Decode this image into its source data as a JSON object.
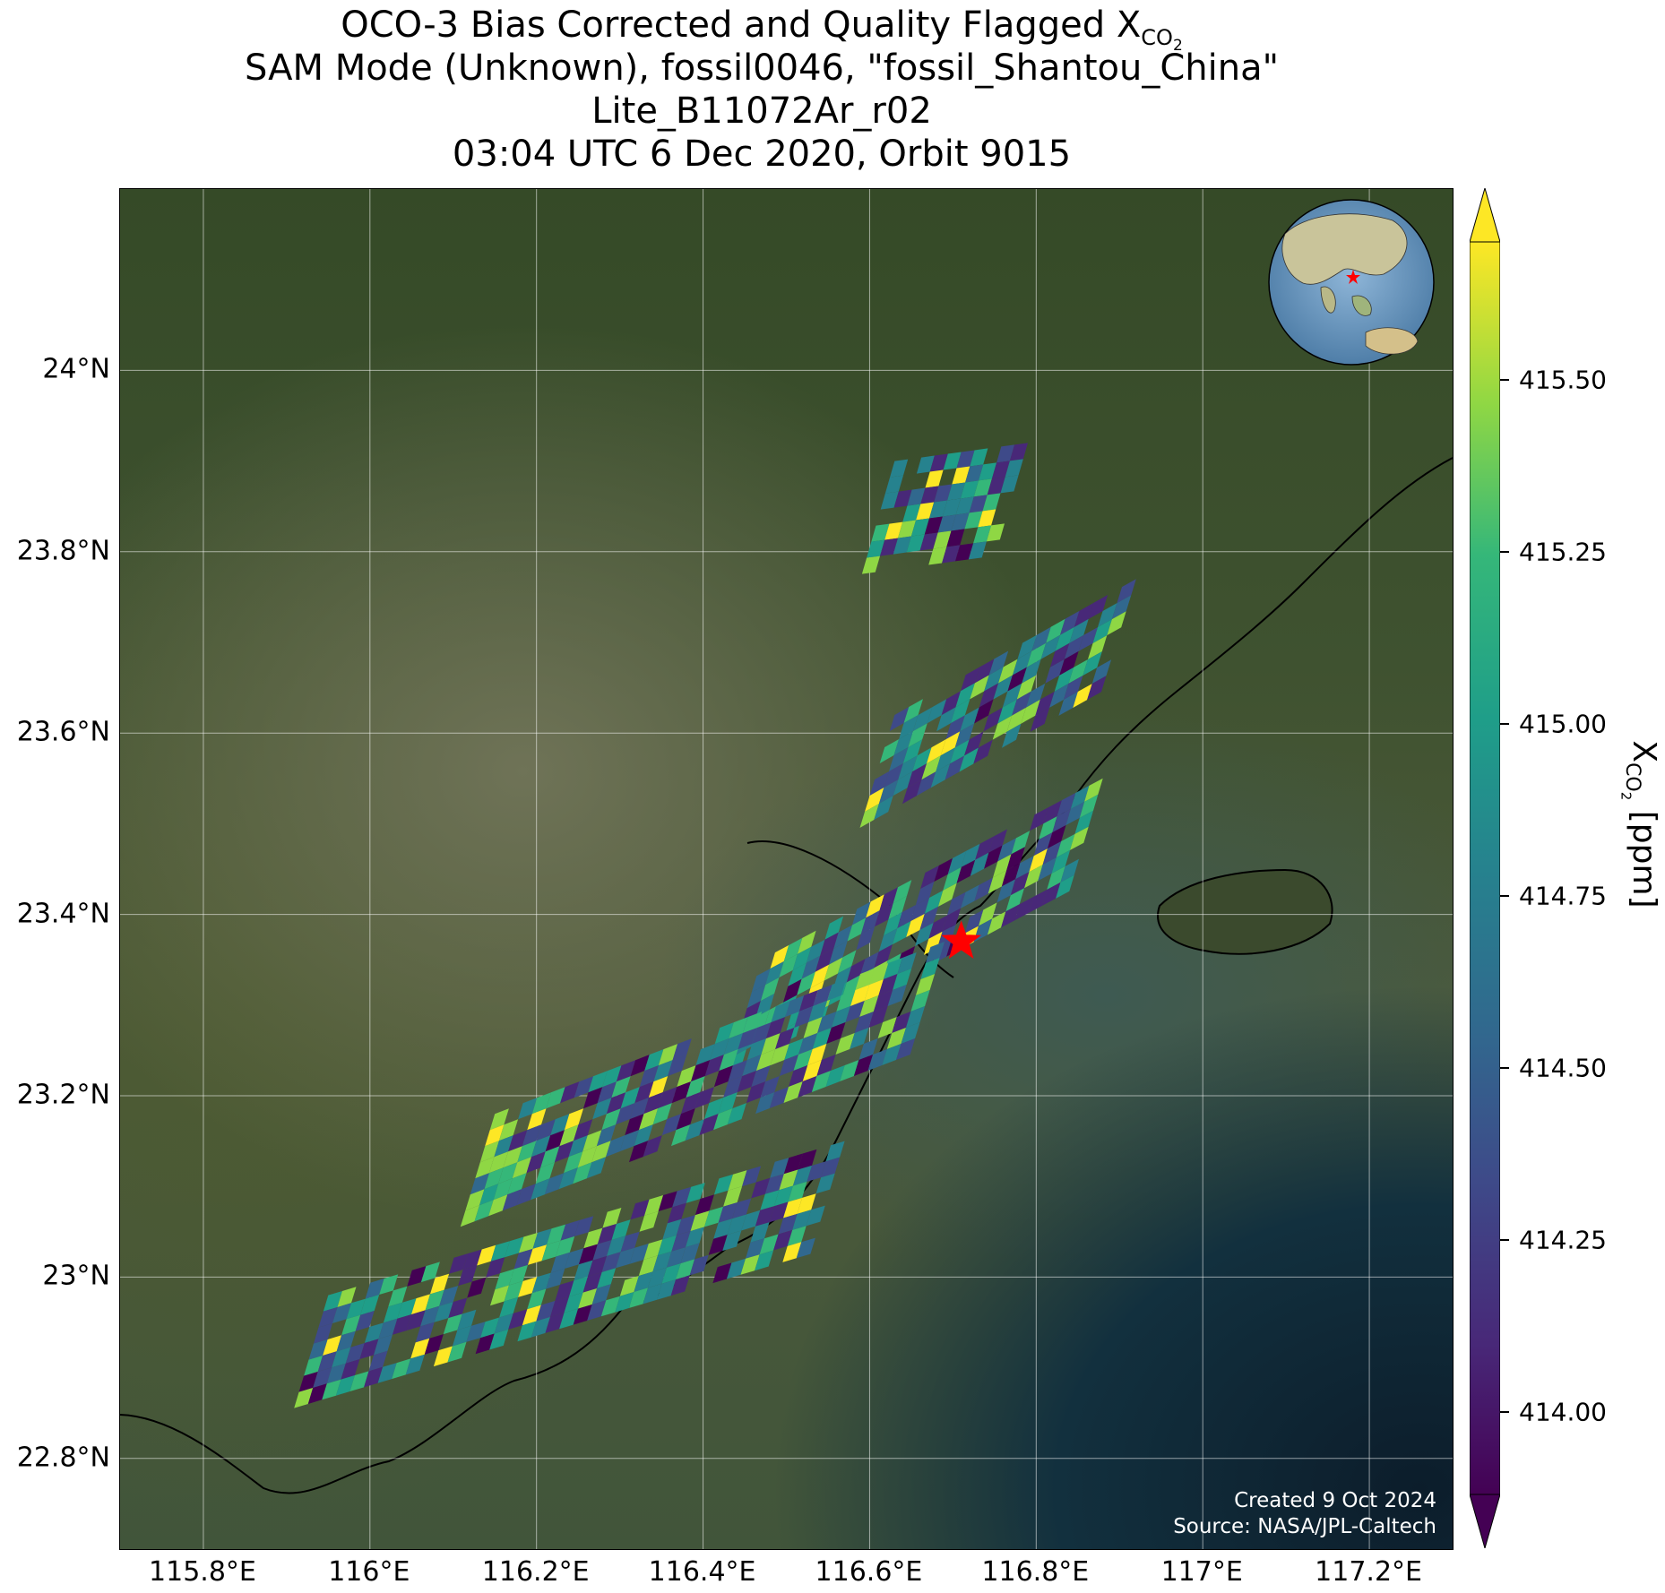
{
  "title": {
    "line1_prefix": "OCO-3 Bias Corrected and Quality Flagged X",
    "line1_sub": "CO",
    "line1_sub2": "2",
    "line2": "SAM Mode (Unknown), fossil0046, \"fossil_Shantou_China\"",
    "line3": "Lite_B11072Ar_r02",
    "line4": "03:04 UTC 6 Dec 2020, Orbit 9015"
  },
  "map": {
    "lat_ticks": [
      "24°N",
      "23.8°N",
      "23.6°N",
      "23.4°N",
      "23.2°N",
      "23°N",
      "22.8°N"
    ],
    "lat_values": [
      24.0,
      23.8,
      23.6,
      23.4,
      23.2,
      23.0,
      22.8
    ],
    "lon_ticks": [
      "115.8°E",
      "116°E",
      "116.2°E",
      "116.4°E",
      "116.6°E",
      "116.8°E",
      "117°E",
      "117.2°E"
    ],
    "lon_values": [
      115.8,
      116.0,
      116.2,
      116.4,
      116.6,
      116.8,
      117.0,
      117.2
    ],
    "lat_range": [
      22.7,
      24.2
    ],
    "lon_range": [
      115.7,
      117.3
    ],
    "target_lat": 23.37,
    "target_lon": 116.71,
    "target_marker_color": "#ff0000",
    "grid": true
  },
  "colorbar": {
    "label_prefix": "X",
    "label_sub": "CO",
    "label_sub2": "2",
    "label_suffix": " [ppm]",
    "ticks": [
      "415.50",
      "415.25",
      "415.00",
      "414.75",
      "414.50",
      "414.25",
      "414.00"
    ],
    "tick_values": [
      415.5,
      415.25,
      415.0,
      414.75,
      414.5,
      414.25,
      414.0
    ],
    "range": [
      413.88,
      415.7
    ],
    "colormap": "viridis",
    "extend": "both"
  },
  "credits": {
    "created": "Created 9 Oct 2024",
    "source": "Source: NASA/JPL-Caltech"
  },
  "chart_data": {
    "type": "heatmap",
    "title": "OCO-3 Bias Corrected and Quality Flagged XCO2",
    "xlabel": "",
    "ylabel": "",
    "colorbar_label": "XCO2 [ppm]",
    "swaths": [
      {
        "lat_start": 23.9,
        "lat_end": 23.92,
        "lon_start": 116.63,
        "lon_end": 116.79
      },
      {
        "lat_start": 23.62,
        "lat_end": 23.77,
        "lon_start": 116.63,
        "lon_end": 116.92
      },
      {
        "lat_start": 23.35,
        "lat_end": 23.55,
        "lon_start": 116.47,
        "lon_end": 116.88
      },
      {
        "lat_start": 23.18,
        "lat_end": 23.37,
        "lon_start": 116.15,
        "lon_end": 116.69
      },
      {
        "lat_start": 22.98,
        "lat_end": 23.15,
        "lon_start": 115.95,
        "lon_end": 116.57
      }
    ]
  }
}
